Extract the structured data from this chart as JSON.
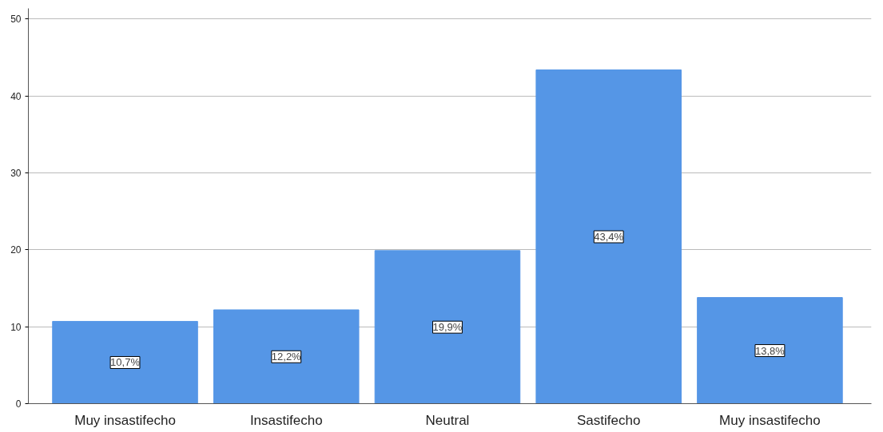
{
  "chart_data": {
    "type": "bar",
    "categories": [
      "Muy insastifecho",
      "Insastifecho",
      "Neutral",
      "Sastifecho",
      "Muy insastifecho"
    ],
    "values": [
      10.7,
      12.2,
      19.9,
      43.4,
      13.8
    ],
    "value_labels": [
      "10,7%",
      "12,2%",
      "19,9%",
      "43,4%",
      "13,8%"
    ],
    "color": "#5596e6",
    "ylim": [
      0,
      51.4
    ],
    "yticks": [
      0,
      10,
      20,
      30,
      40,
      50
    ],
    "grid": "y"
  }
}
